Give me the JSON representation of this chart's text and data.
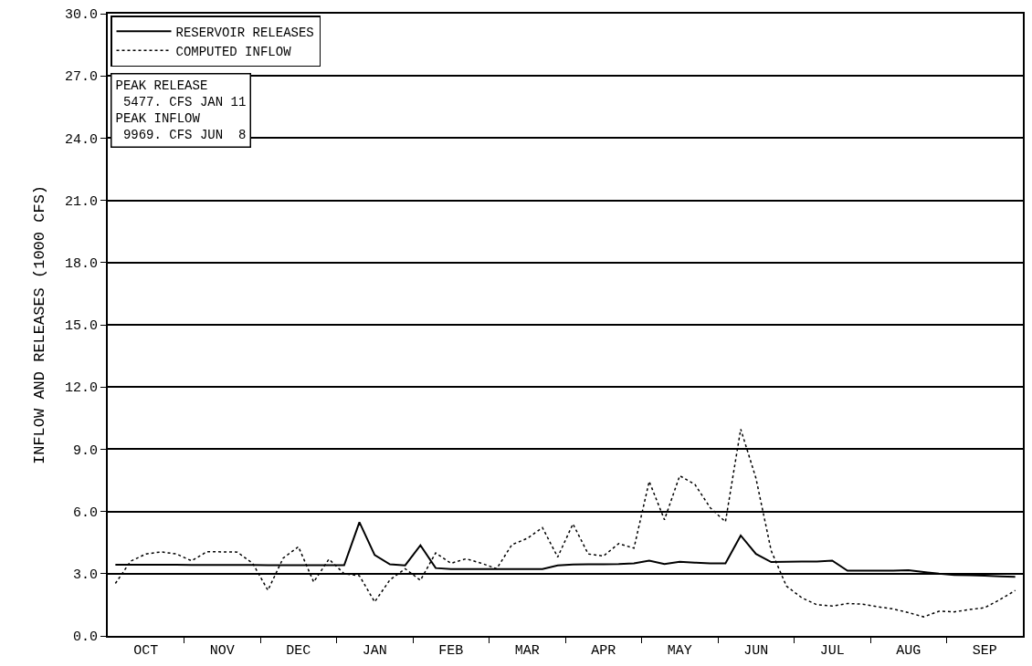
{
  "chart_data": {
    "type": "line",
    "ylabel": "INFLOW AND RELEASES (1000 CFS)",
    "categories": [
      null,
      null,
      "OCT",
      null,
      null,
      null,
      null,
      "NOV",
      null,
      null,
      null,
      null,
      "DEC",
      null,
      null,
      null,
      null,
      "JAN",
      null,
      null,
      null,
      null,
      "FEB",
      null,
      null,
      null,
      null,
      "MAR",
      null,
      null,
      null,
      null,
      "APR",
      null,
      null,
      null,
      null,
      "MAY",
      null,
      null,
      null,
      null,
      "JUN",
      null,
      null,
      null,
      null,
      "JUL",
      null,
      null,
      null,
      null,
      "AUG",
      null,
      null,
      null,
      null,
      "SEP",
      null,
      null
    ],
    "ylim": [
      0,
      30
    ],
    "yticks": [
      {
        "value": 0,
        "label": "0.0"
      },
      {
        "value": 3,
        "label": "3.0"
      },
      {
        "value": 6,
        "label": "6.0"
      },
      {
        "value": 9,
        "label": "9.0"
      },
      {
        "value": 12,
        "label": "12.0"
      },
      {
        "value": 15,
        "label": "15.0"
      },
      {
        "value": 18,
        "label": "18.0"
      },
      {
        "value": 21,
        "label": "21.0"
      },
      {
        "value": 24,
        "label": "24.0"
      },
      {
        "value": 27,
        "label": "27.0"
      },
      {
        "value": 30,
        "label": "30.0"
      }
    ],
    "grid": "y",
    "legend": "top left",
    "marker": "none",
    "annotations": [
      "PEAK RELEASE\n 5477. CFS JAN 11",
      "PEAK INFLOW\n 9969. CFS JUN  8"
    ],
    "series": [
      {
        "name": "RESERVOIR RELEASES",
        "color": "#000000",
        "line_style": "solid",
        "values": [
          3.43,
          3.43,
          3.43,
          3.43,
          3.43,
          3.42,
          3.42,
          3.42,
          3.42,
          3.42,
          3.41,
          3.41,
          3.41,
          3.41,
          3.41,
          3.41,
          5.48,
          3.9,
          3.45,
          3.4,
          4.37,
          3.27,
          3.22,
          3.22,
          3.22,
          3.22,
          3.22,
          3.22,
          3.22,
          3.4,
          3.44,
          3.45,
          3.45,
          3.46,
          3.5,
          3.63,
          3.47,
          3.57,
          3.53,
          3.5,
          3.5,
          4.84,
          3.95,
          3.56,
          3.57,
          3.58,
          3.59,
          3.63,
          3.14,
          3.14,
          3.14,
          3.15,
          3.17,
          3.08,
          3.0,
          2.94,
          2.92,
          2.9,
          2.87,
          2.85
        ]
      },
      {
        "name": "COMPUTED INFLOW",
        "color": "#000000",
        "line_style": "dotted",
        "values": [
          2.53,
          3.6,
          3.95,
          4.05,
          3.95,
          3.62,
          4.06,
          4.05,
          4.04,
          3.5,
          2.2,
          3.75,
          4.3,
          2.6,
          3.7,
          3.0,
          2.9,
          1.64,
          2.7,
          3.24,
          2.68,
          4.0,
          3.5,
          3.72,
          3.5,
          3.24,
          4.4,
          4.7,
          5.22,
          3.8,
          5.4,
          3.95,
          3.85,
          4.45,
          4.23,
          7.45,
          5.6,
          7.72,
          7.3,
          6.18,
          5.5,
          9.97,
          7.6,
          4.1,
          2.4,
          1.84,
          1.5,
          1.44,
          1.56,
          1.53,
          1.4,
          1.3,
          1.12,
          0.92,
          1.19,
          1.16,
          1.27,
          1.36,
          1.75,
          2.19
        ]
      }
    ]
  }
}
